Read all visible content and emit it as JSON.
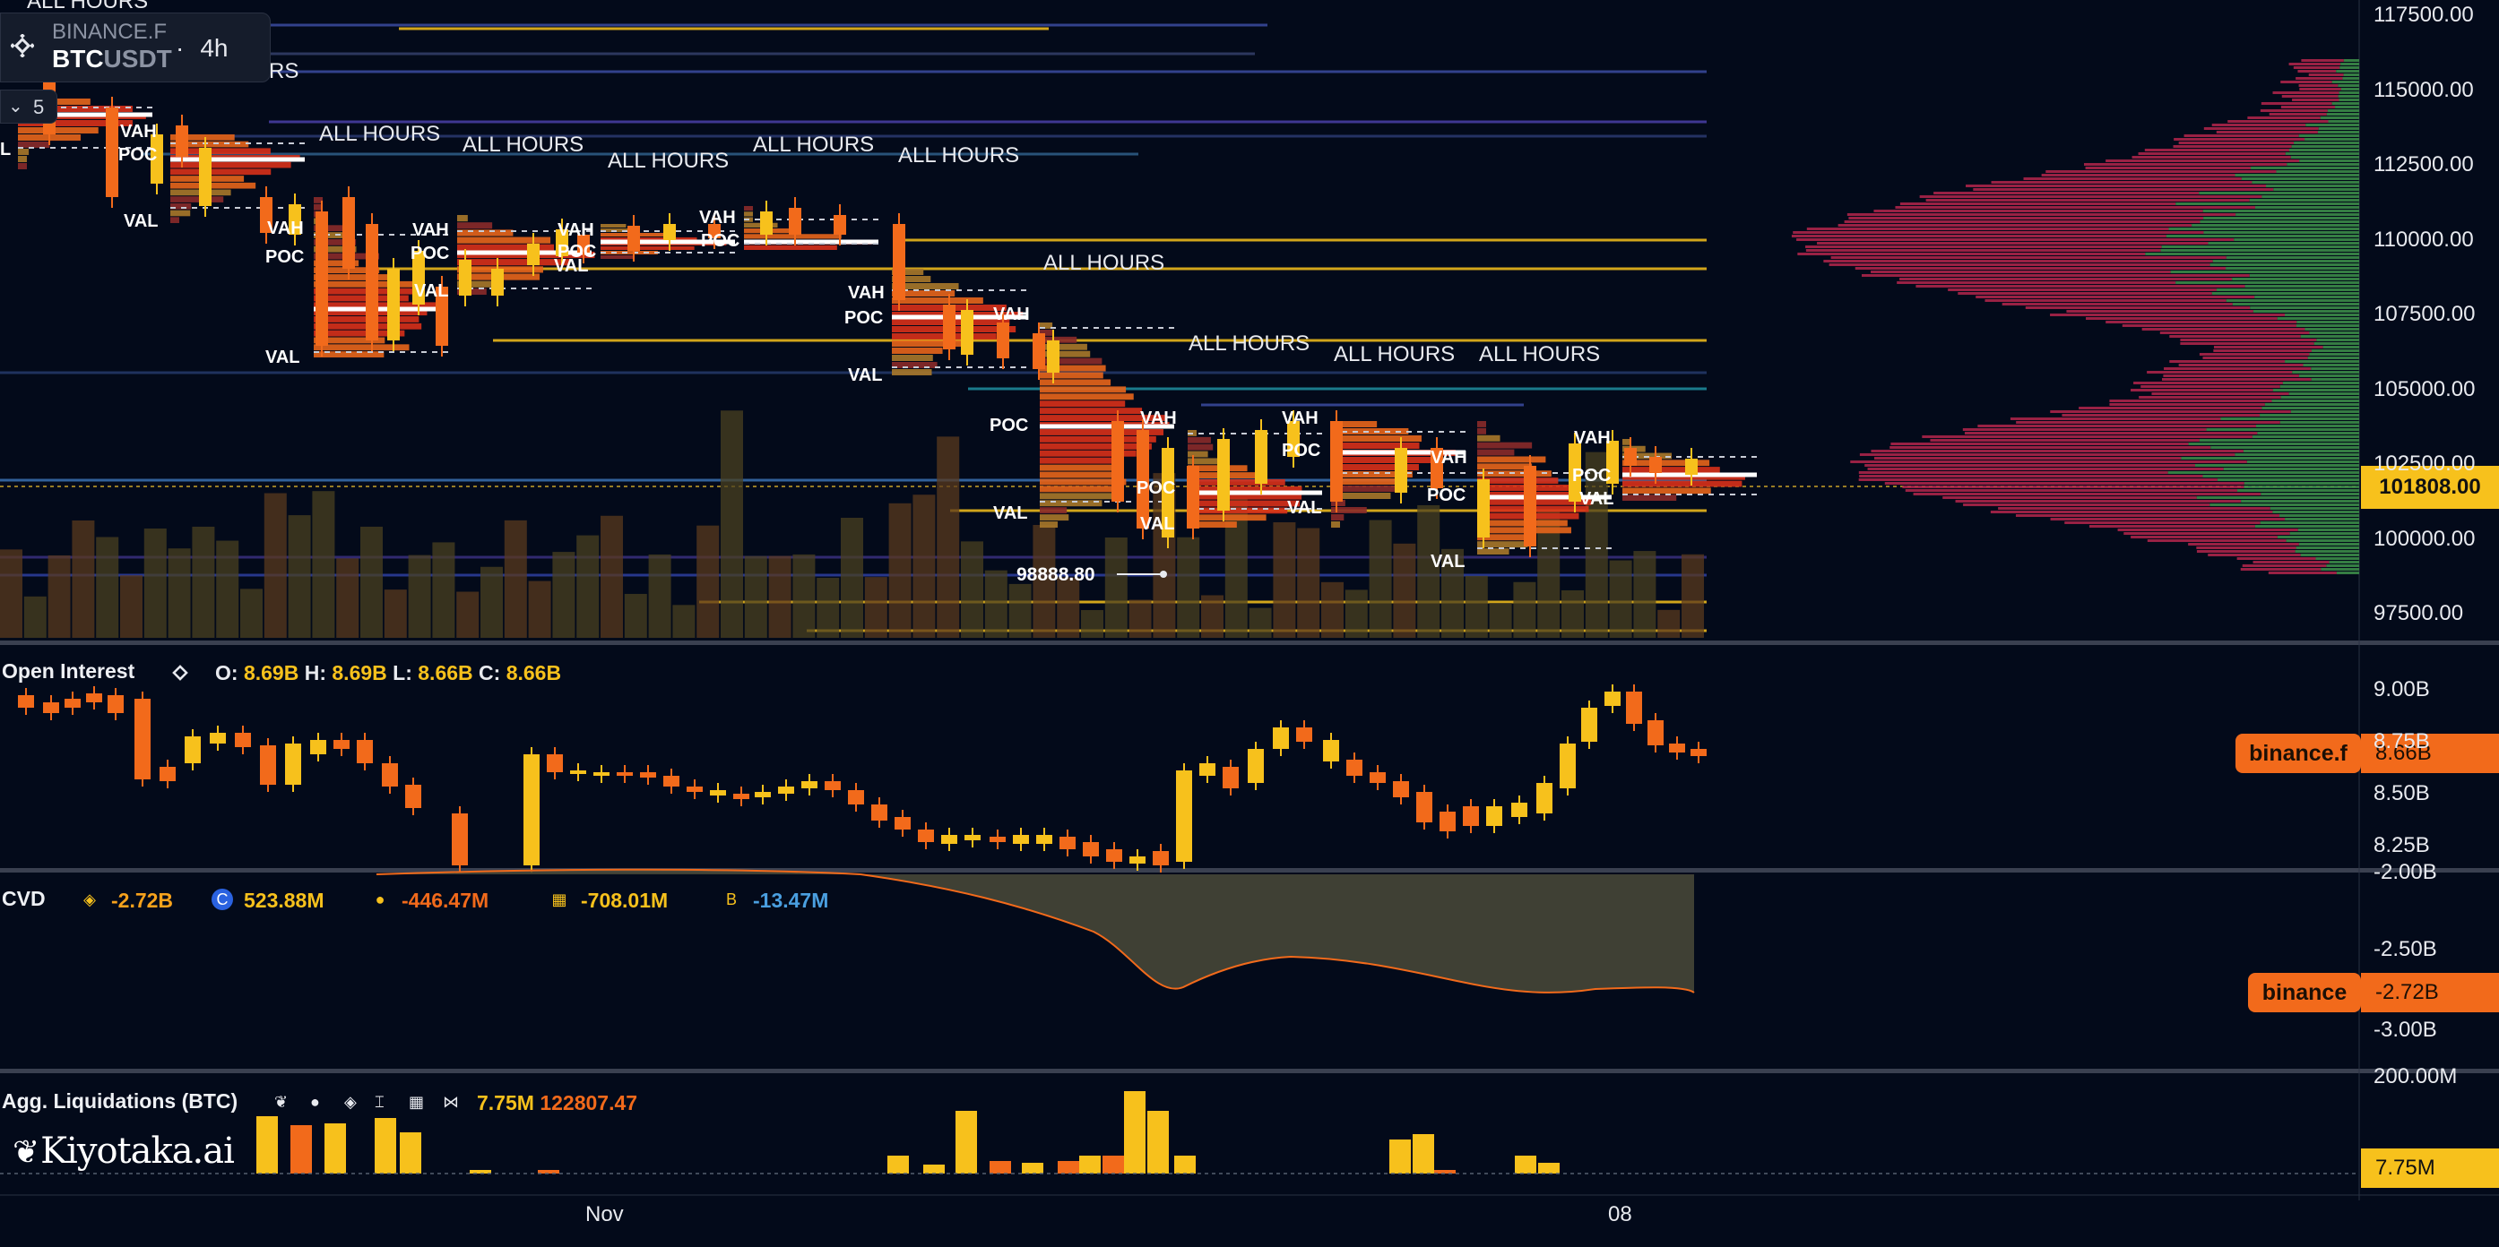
{
  "symbol": {
    "exchange": "BINANCE.F",
    "base": "BTC",
    "quote": "USDT",
    "separator": "·",
    "timeframe": "4h"
  },
  "layers": {
    "icon": "chevron-down-icon",
    "count": "5"
  },
  "price_axis": {
    "labels": [
      "117500.00",
      "115000.00",
      "112500.00",
      "110000.00",
      "107500.00",
      "105000.00",
      "102500.00",
      "100000.00",
      "97500.00"
    ],
    "last_price": "101808.00"
  },
  "volume_profile": {
    "session_label": "ALL HOURS",
    "sessions_count": 11,
    "markers": {
      "vah": "VAH",
      "poc": "POC",
      "val": "VAL",
      "partial_left": "L"
    },
    "low_callout": "98888.80",
    "top_partial": "ALL HOURS",
    "mid_partial": "RS"
  },
  "open_interest": {
    "title": "Open Interest",
    "icon": "binance-icon",
    "o_label": "O:",
    "o": "8.69B",
    "h_label": "H:",
    "h": "8.69B",
    "l_label": "L:",
    "l": "8.66B",
    "c_label": "C:",
    "c": "8.66B",
    "axis": [
      "9.00B",
      "8.75B",
      "8.50B",
      "8.25B"
    ],
    "tag_name": "binance.f",
    "tag_value": "8.66B"
  },
  "cvd": {
    "title": "CVD",
    "values": [
      {
        "icon": "binance-icon",
        "value": "-2.72B",
        "color": "#f7a21c"
      },
      {
        "icon": "coinbase-icon",
        "value": "523.88M",
        "color": "#f7c11c"
      },
      {
        "icon": "bybit-icon",
        "value": "-446.47M",
        "color": "#f26a1b"
      },
      {
        "icon": "okx-icon",
        "value": "-708.01M",
        "color": "#f7c11c"
      },
      {
        "icon": "bitmex-icon",
        "value": "-13.47M",
        "color": "#4a9fe0"
      }
    ],
    "axis": [
      "-2.00B",
      "-2.50B",
      "-3.00B"
    ],
    "tag_name": "binance",
    "tag_value": "-2.72B"
  },
  "liquidations": {
    "title": "Agg. Liquidations (BTC)",
    "icons": [
      "leaf-icon",
      "coin-icon",
      "binance-icon",
      "bitmex-icon",
      "okx-icon",
      "bow-icon"
    ],
    "v1": "7.75M",
    "v2": "122807.47",
    "axis_top": "200.00M",
    "tag_value": "7.75M"
  },
  "time_axis": [
    "Nov",
    "08"
  ],
  "watermark": "Kiyotaka.ai",
  "colors": {
    "background": "#030a1a",
    "bull": "#f7c11c",
    "bear": "#f26a1b",
    "profile_green": "#3b8a48",
    "profile_red": "#b4264c",
    "separator": "#3a4050"
  }
}
